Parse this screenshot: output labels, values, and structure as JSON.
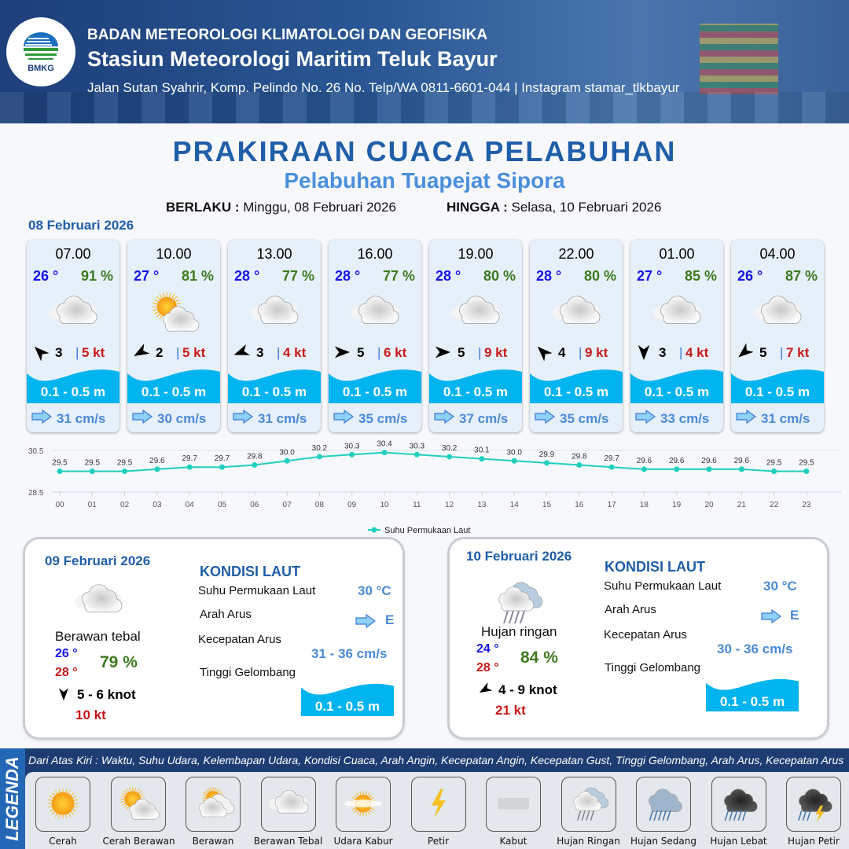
{
  "header": {
    "org": "BADAN METEOROLOGI KLIMATOLOGI DAN GEOFISIKA",
    "station": "Stasiun Meteorologi Maritim Teluk Bayur",
    "address": "Jalan Sutan Syahrir, Komp. Pelindo No. 26 No. Telp/WA 0811-6601-044 | Instagram stamar_tlkbayur",
    "logo_text": "BMKG"
  },
  "title": "PRAKIRAAN CUACA PELABUHAN",
  "subtitle": "Pelabuhan Tuapejat Sipora",
  "validity": {
    "from_label": "BERLAKU :",
    "from": "Minggu, 08 Februari 2026",
    "to_label": "HINGGA :",
    "to": "Selasa, 10 Februari 2026"
  },
  "day0": {
    "date": "08 Februari 2026",
    "cards": [
      {
        "time": "07.00",
        "temp": "26 °",
        "hum": "91 %",
        "icon": "berawan-tebal",
        "wind_dir_deg": 315,
        "wind": "3",
        "gust": "5 kt",
        "wave": "0.1 - 0.5 m",
        "current": "31 cm/s"
      },
      {
        "time": "10.00",
        "temp": "27 °",
        "hum": "81 %",
        "icon": "cerah-berawan",
        "wind_dir_deg": 240,
        "wind": "2",
        "gust": "5 kt",
        "wave": "0.1 - 0.5 m",
        "current": "30 cm/s"
      },
      {
        "time": "13.00",
        "temp": "28 °",
        "hum": "77 %",
        "icon": "berawan-tebal",
        "wind_dir_deg": 250,
        "wind": "3",
        "gust": "4 kt",
        "wave": "0.1 - 0.5 m",
        "current": "31 cm/s"
      },
      {
        "time": "16.00",
        "temp": "28 °",
        "hum": "77 %",
        "icon": "berawan-tebal",
        "wind_dir_deg": 90,
        "wind": "5",
        "gust": "6 kt",
        "wave": "0.1 - 0.5 m",
        "current": "35 cm/s"
      },
      {
        "time": "19.00",
        "temp": "28 °",
        "hum": "80 %",
        "icon": "berawan-tebal",
        "wind_dir_deg": 90,
        "wind": "5",
        "gust": "9 kt",
        "wave": "0.1 - 0.5 m",
        "current": "37 cm/s"
      },
      {
        "time": "22.00",
        "temp": "28 °",
        "hum": "80 %",
        "icon": "berawan-tebal",
        "wind_dir_deg": 315,
        "wind": "4",
        "gust": "9 kt",
        "wave": "0.1 - 0.5 m",
        "current": "35 cm/s"
      },
      {
        "time": "01.00",
        "temp": "27 °",
        "hum": "85 %",
        "icon": "berawan-tebal",
        "wind_dir_deg": 180,
        "wind": "3",
        "gust": "4 kt",
        "wave": "0.1 - 0.5 m",
        "current": "33 cm/s"
      },
      {
        "time": "04.00",
        "temp": "26 °",
        "hum": "87 %",
        "icon": "berawan-tebal",
        "wind_dir_deg": 230,
        "wind": "5",
        "gust": "7 kt",
        "wave": "0.1 - 0.5 m",
        "current": "31 cm/s"
      }
    ]
  },
  "chart_data": {
    "type": "line",
    "x": [
      "00",
      "01",
      "02",
      "03",
      "04",
      "05",
      "06",
      "07",
      "08",
      "09",
      "10",
      "11",
      "12",
      "13",
      "14",
      "15",
      "16",
      "17",
      "18",
      "19",
      "20",
      "21",
      "22",
      "23"
    ],
    "series": [
      {
        "name": "Suhu Permukaan Laut",
        "values": [
          29.5,
          29.5,
          29.5,
          29.6,
          29.7,
          29.7,
          29.8,
          30.0,
          30.2,
          30.3,
          30.4,
          30.3,
          30.2,
          30.1,
          30.0,
          29.9,
          29.8,
          29.7,
          29.6,
          29.6,
          29.6,
          29.6,
          29.5,
          29.5
        ],
        "color": "#1fcfbf"
      }
    ],
    "yticks": [
      "30.5",
      "28.5"
    ],
    "ylim": [
      28.5,
      30.5
    ],
    "legend": "bottom-center",
    "data_labels": true
  },
  "days": [
    {
      "date": "09 Februari 2026",
      "icon": "berawan-tebal",
      "condition": "Berawan tebal",
      "tmin": "26 °",
      "tmax": "28 °",
      "hum": "79 %",
      "wind_dir_deg": 180,
      "wind": "5  - 6 knot",
      "gust": "10 kt",
      "sea": {
        "title": "KONDISI LAUT",
        "sst_label": "Suhu Permukaan Laut",
        "sst": "30 °C",
        "dir_label": "Arah Arus",
        "dir": "E",
        "speed_label": "Kecepatan Arus",
        "speed": "31 - 36 cm/s",
        "wave_label": "Tinggi Gelombang",
        "wave": "0.1 - 0.5 m"
      }
    },
    {
      "date": "10 Februari 2026",
      "icon": "hujan-ringan",
      "condition": "Hujan ringan",
      "tmin": "24 °",
      "tmax": "28 °",
      "hum": "84 %",
      "wind_dir_deg": 240,
      "wind": "4 - 9 knot",
      "gust": "21 kt",
      "sea": {
        "title": "KONDISI LAUT",
        "sst_label": "Suhu Permukaan Laut",
        "sst": "30 °C",
        "dir_label": "Arah Arus",
        "dir": "E",
        "speed_label": "Kecepatan Arus",
        "speed": "30 - 36 cm/s",
        "wave_label": "Tinggi Gelombang",
        "wave": "0.1 - 0.5 m"
      }
    }
  ],
  "legend": {
    "title": "LEGENDA",
    "description": "Dari Atas Kiri : Waktu, Suhu Udara, Kelembapan Udara, Kondisi Cuaca, Arah Angin, Kecepatan Angin, Kecepatan Gust, Tinggi Gelombang, Arah Arus, Kecepatan Arus",
    "items": [
      {
        "name": "Cerah",
        "icon": "cerah"
      },
      {
        "name": "Cerah Berawan",
        "icon": "cerah-berawan"
      },
      {
        "name": "Berawan",
        "icon": "berawan"
      },
      {
        "name": "Berawan Tebal",
        "icon": "berawan-tebal"
      },
      {
        "name": "Udara Kabur",
        "icon": "udara-kabur"
      },
      {
        "name": "Petir",
        "icon": "petir"
      },
      {
        "name": "Kabut",
        "icon": "kabut"
      },
      {
        "name": "Hujan Ringan",
        "icon": "hujan-ringan"
      },
      {
        "name": "Hujan Sedang",
        "icon": "hujan-sedang"
      },
      {
        "name": "Hujan Lebat",
        "icon": "hujan-lebat"
      },
      {
        "name": "Hujan Petir",
        "icon": "hujan-petir"
      }
    ]
  },
  "colors": {
    "title": "#1f5ea8",
    "temp": "#1414e6",
    "humidity": "#3c7a1e",
    "gust": "#c81818",
    "wave": "#00b4f0",
    "current": "#4a8ad6"
  }
}
